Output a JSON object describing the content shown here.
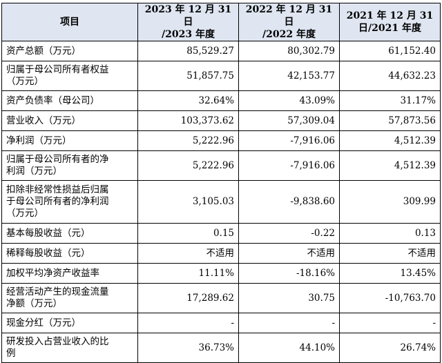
{
  "table": {
    "headers": [
      "项目",
      "2023 年 12 月 31 日\n/2023 年度",
      "2022 年 12 月 31 日\n/2022 年度",
      "2021 年 12 月 31\n日/2021 年度"
    ],
    "rows": [
      {
        "label": "资产总额（万元）",
        "values": [
          "85,529.27",
          "80,302.79",
          "61,152.40"
        ]
      },
      {
        "label": "归属于母公司所有者权益\n（万元）",
        "values": [
          "51,857.75",
          "42,153.77",
          "44,632.23"
        ]
      },
      {
        "label": "资产负债率（母公司）",
        "values": [
          "32.64%",
          "43.09%",
          "31.17%"
        ]
      },
      {
        "label": "营业收入（万元）",
        "values": [
          "103,373.62",
          "57,309.04",
          "57,873.56"
        ]
      },
      {
        "label": "净利润（万元）",
        "values": [
          "5,222.96",
          "-7,916.06",
          "4,512.39"
        ]
      },
      {
        "label": "归属于母公司所有者的净\n利润（万元）",
        "values": [
          "5,222.96",
          "-7,916.06",
          "4,512.39"
        ]
      },
      {
        "label": "扣除非经常性损益后归属\n于母公司所有者的净利润\n（万元）",
        "values": [
          "3,105.03",
          "-9,838.60",
          "309.99"
        ]
      },
      {
        "label": "基本每股收益（元）",
        "values": [
          "0.15",
          "-0.22",
          "0.13"
        ]
      },
      {
        "label": "稀释每股收益（元）",
        "values": [
          "不适用",
          "不适用",
          "不适用"
        ]
      },
      {
        "label": "加权平均净资产收益率",
        "values": [
          "11.11%",
          "-18.16%",
          "13.45%"
        ]
      },
      {
        "label": "经营活动产生的现金流量\n净额（万元）",
        "values": [
          "17,289.62",
          "30.75",
          "-10,763.70"
        ]
      },
      {
        "label": "现金分红（万元）",
        "values": [
          "-",
          "-",
          "-"
        ]
      },
      {
        "label": "研发投入占营业收入的比\n例",
        "values": [
          "36.73%",
          "44.10%",
          "26.74%"
        ]
      }
    ]
  }
}
